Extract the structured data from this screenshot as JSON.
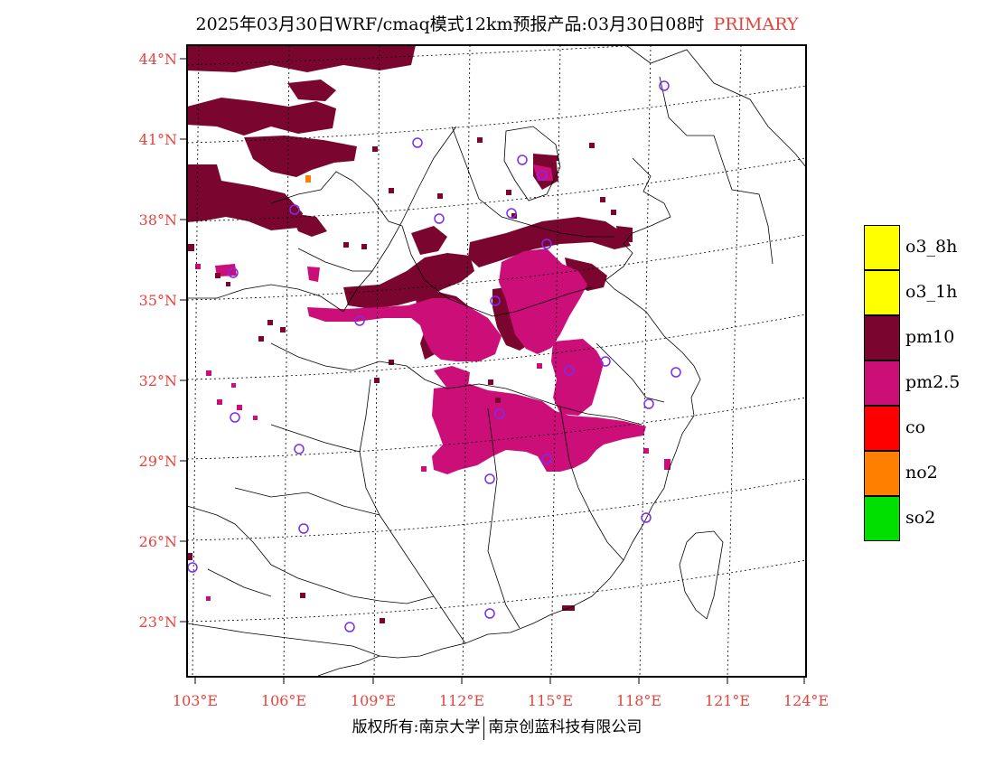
{
  "title": {
    "main": "2025年03月30日WRF/cmaq模式12km预报产品:03月30日08时",
    "tag": "PRIMARY"
  },
  "axes": {
    "latitudes": [
      "44°N",
      "41°N",
      "38°N",
      "35°N",
      "32°N",
      "29°N",
      "26°N",
      "23°N"
    ],
    "longitudes": [
      "103°E",
      "106°E",
      "109°E",
      "112°E",
      "115°E",
      "118°E",
      "121°E",
      "124°E"
    ]
  },
  "legend": [
    {
      "label": "o3_8h",
      "color": "#ffff00"
    },
    {
      "label": "o3_1h",
      "color": "#ffff00"
    },
    {
      "label": "pm10",
      "color": "#7a0630"
    },
    {
      "label": "pm2.5",
      "color": "#cc0e78"
    },
    {
      "label": "co",
      "color": "#ff0000"
    },
    {
      "label": "no2",
      "color": "#ff7f00"
    },
    {
      "label": "so2",
      "color": "#00e000"
    }
  ],
  "copyright": {
    "left": "版权所有:南京大学",
    "right": "南京创蓝科技有限公司"
  },
  "colors": {
    "label_red": "#e8423c",
    "pm10": "#7a0630",
    "pm25": "#cc0e78",
    "station": "#7b2cf0"
  }
}
